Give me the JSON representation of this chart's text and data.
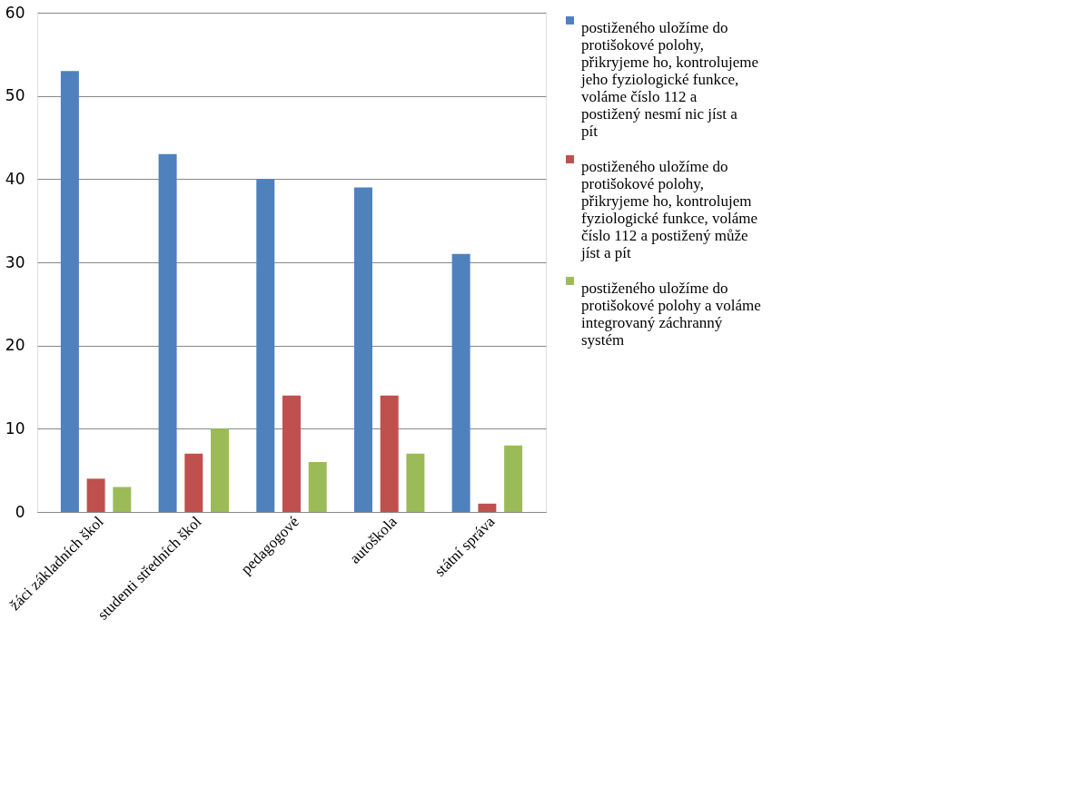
{
  "chart_data": {
    "type": "bar",
    "categories": [
      "žáci základních škol",
      "studenti středních škol",
      "pedagogové",
      "autoškola",
      "státní správa"
    ],
    "series": [
      {
        "name": "postiženého uložíme do protišokové polohy, přikryjeme ho, kontrolujeme jeho fyziologické funkce, voláme číslo 112 a postižený nesmí nic jíst a pít",
        "color": "#4f81bd",
        "values": [
          53,
          43,
          40,
          39,
          31
        ]
      },
      {
        "name": "postiženého uložíme do protišokové polohy, přikryjeme ho, kontrolujem fyziologické funkce, voláme číslo 112 a postižený může jíst a pít",
        "color": "#c0504d",
        "values": [
          4,
          7,
          14,
          14,
          1
        ]
      },
      {
        "name": "postiženého uložíme do protišokové polohy a voláme integrovaný záchranný systém",
        "color": "#9bbb59",
        "values": [
          3,
          10,
          6,
          7,
          8
        ]
      }
    ],
    "ylim": [
      0,
      60
    ],
    "yticks": [
      0,
      10,
      20,
      30,
      40,
      50,
      60
    ],
    "grid": "y",
    "legend": "right"
  }
}
